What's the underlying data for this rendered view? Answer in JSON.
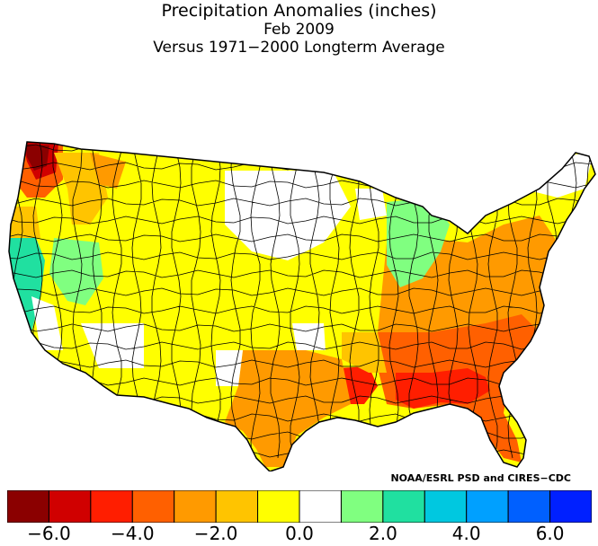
{
  "title": "Precipitation Anomalies (inches)",
  "subtitle": "Feb 2009",
  "subtitle2": "Versus 1971−2000 Longterm Average",
  "credit": "NOAA/ESRL PSD and CIRES−CDC",
  "legend": {
    "colors": [
      "#8b0000",
      "#d00000",
      "#ff1e00",
      "#ff6000",
      "#ff9a00",
      "#ffc400",
      "#ffff00",
      "#ffffff",
      "#80ff80",
      "#20e0a0",
      "#00c8e0",
      "#00a0ff",
      "#0060ff",
      "#0020ff"
    ],
    "ticks": [
      {
        "label": "−6.0",
        "value": -6
      },
      {
        "label": "−4.0",
        "value": -4
      },
      {
        "label": "−2.0",
        "value": -2
      },
      {
        "label": "0.0",
        "value": 0
      },
      {
        "label": "2.0",
        "value": 2
      },
      {
        "label": "4.0",
        "value": 4
      },
      {
        "label": "6.0",
        "value": 6
      }
    ]
  },
  "regions": [
    {
      "name": "northwest-coast",
      "color": "#8b0000"
    },
    {
      "name": "oregon-coast",
      "color": "#ff6000"
    },
    {
      "name": "california-north",
      "color": "#20e0a0"
    },
    {
      "name": "nevada",
      "color": "#80ff80"
    },
    {
      "name": "southeast",
      "color": "#ff6000"
    },
    {
      "name": "gulf-coast",
      "color": "#ff1e00"
    },
    {
      "name": "texas",
      "color": "#ff9a00"
    },
    {
      "name": "great-lakes",
      "color": "#80ff80"
    },
    {
      "name": "plains",
      "color": "#ffff00"
    }
  ]
}
